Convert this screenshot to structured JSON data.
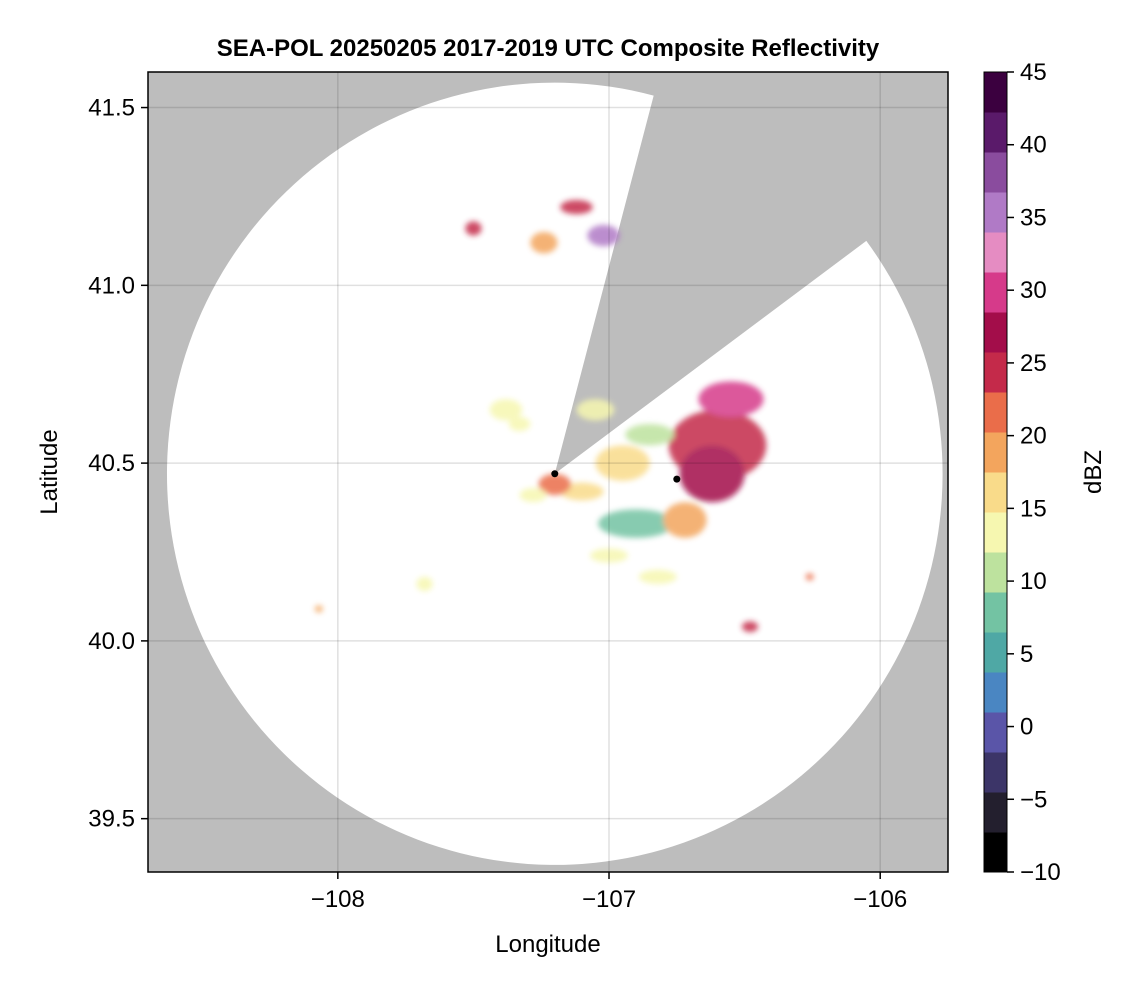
{
  "chart_data": {
    "type": "heatmap",
    "title": "SEA-POL 20250205 2017-2019 UTC Composite Reflectivity",
    "xlabel": "Longitude",
    "ylabel": "Latitude",
    "xlim": [
      -108.7,
      -105.75
    ],
    "ylim": [
      39.35,
      41.6
    ],
    "xticks": [
      -108,
      -107,
      -106
    ],
    "xtick_labels": [
      "−108",
      "−107",
      "−106"
    ],
    "yticks": [
      39.5,
      40.0,
      40.5,
      41.0,
      41.5
    ],
    "ytick_labels": [
      "39.5",
      "40.0",
      "40.5",
      "41.0",
      "41.5"
    ],
    "grid": true,
    "background_color": "#bdbdbd",
    "radar_coverage": {
      "center": [
        -107.2,
        40.47
      ],
      "radius_lon": 1.43,
      "radius_lat": 1.1,
      "blocked_sectors": [
        {
          "edge1": [
            -106.84,
            41.52
          ],
          "edge2": [
            -106.06,
            41.12
          ]
        }
      ]
    },
    "markers": [
      {
        "lon": -107.2,
        "lat": 40.47,
        "color": "#000000"
      },
      {
        "lon": -106.75,
        "lat": 40.455,
        "color": "#000000"
      }
    ],
    "colorbar": {
      "label": "dBZ",
      "min": -10,
      "max": 45,
      "ticks": [
        -10,
        -5,
        0,
        5,
        10,
        15,
        20,
        25,
        30,
        35,
        40,
        45
      ],
      "tick_labels": [
        "−10",
        "−5",
        "0",
        "5",
        "10",
        "15",
        "20",
        "25",
        "30",
        "35",
        "40",
        "45"
      ],
      "colormap": [
        "#000000",
        "#231f2e",
        "#3c3568",
        "#5a55a8",
        "#4a86c2",
        "#4fa8a5",
        "#73c3a3",
        "#bde29e",
        "#f6f7b0",
        "#f9db8a",
        "#f3a55d",
        "#ea6d4a",
        "#c42a4a",
        "#a30d4a",
        "#d63a8a",
        "#e58cc2",
        "#b07ac6",
        "#8a4c9e",
        "#5a1a6a",
        "#3b003f"
      ],
      "steps": 40
    },
    "echo_regions": [
      {
        "lon": -106.6,
        "lat": 40.55,
        "rlon": 0.18,
        "rlat": 0.1,
        "dbz": 24
      },
      {
        "lon": -106.55,
        "lat": 40.68,
        "rlon": 0.12,
        "rlat": 0.05,
        "dbz": 30
      },
      {
        "lon": -106.62,
        "lat": 40.47,
        "rlon": 0.12,
        "rlat": 0.08,
        "dbz": 27
      },
      {
        "lon": -106.85,
        "lat": 40.58,
        "rlon": 0.09,
        "rlat": 0.03,
        "dbz": 11
      },
      {
        "lon": -106.95,
        "lat": 40.5,
        "rlon": 0.1,
        "rlat": 0.05,
        "dbz": 16
      },
      {
        "lon": -106.9,
        "lat": 40.33,
        "rlon": 0.14,
        "rlat": 0.04,
        "dbz": 9
      },
      {
        "lon": -106.72,
        "lat": 40.34,
        "rlon": 0.08,
        "rlat": 0.05,
        "dbz": 18
      },
      {
        "lon": -107.1,
        "lat": 40.42,
        "rlon": 0.08,
        "rlat": 0.025,
        "dbz": 17
      },
      {
        "lon": -107.2,
        "lat": 40.44,
        "rlon": 0.06,
        "rlat": 0.03,
        "dbz": 22
      },
      {
        "lon": -107.28,
        "lat": 40.41,
        "rlon": 0.05,
        "rlat": 0.02,
        "dbz": 14
      },
      {
        "lon": -107.05,
        "lat": 40.65,
        "rlon": 0.07,
        "rlat": 0.03,
        "dbz": 14
      },
      {
        "lon": -107.0,
        "lat": 40.24,
        "rlon": 0.07,
        "rlat": 0.02,
        "dbz": 13
      },
      {
        "lon": -106.82,
        "lat": 40.18,
        "rlon": 0.07,
        "rlat": 0.02,
        "dbz": 14
      },
      {
        "lon": -107.38,
        "lat": 40.65,
        "rlon": 0.06,
        "rlat": 0.03,
        "dbz": 14
      },
      {
        "lon": -107.33,
        "lat": 40.61,
        "rlon": 0.04,
        "rlat": 0.02,
        "dbz": 12
      },
      {
        "lon": -107.24,
        "lat": 41.12,
        "rlon": 0.05,
        "rlat": 0.03,
        "dbz": 19
      },
      {
        "lon": -107.02,
        "lat": 41.14,
        "rlon": 0.06,
        "rlat": 0.03,
        "dbz": 34
      },
      {
        "lon": -107.12,
        "lat": 41.22,
        "rlon": 0.06,
        "rlat": 0.02,
        "dbz": 23
      },
      {
        "lon": -107.5,
        "lat": 41.16,
        "rlon": 0.03,
        "rlat": 0.02,
        "dbz": 23
      },
      {
        "lon": -107.68,
        "lat": 40.16,
        "rlon": 0.03,
        "rlat": 0.02,
        "dbz": 13
      },
      {
        "lon": -106.48,
        "lat": 40.04,
        "rlon": 0.03,
        "rlat": 0.015,
        "dbz": 23
      },
      {
        "lon": -108.07,
        "lat": 40.09,
        "rlon": 0.015,
        "rlat": 0.01,
        "dbz": 20
      },
      {
        "lon": -106.26,
        "lat": 40.18,
        "rlon": 0.015,
        "rlat": 0.01,
        "dbz": 22
      }
    ]
  }
}
